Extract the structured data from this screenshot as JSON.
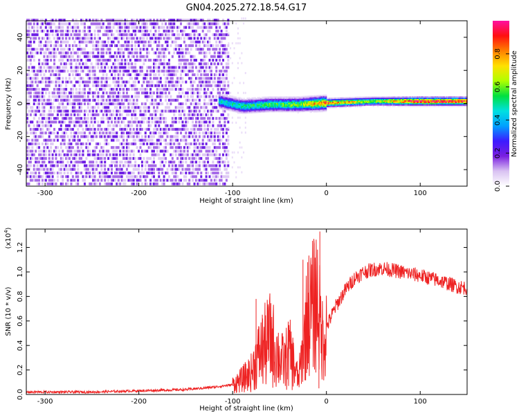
{
  "title": "GN04.2025.272.18.54.G17",
  "chart_data": [
    {
      "type": "heatmap",
      "name": "spectrogram",
      "xlabel": "Height of straight line (km)",
      "ylabel": "Frequency (Hz)",
      "xlim": [
        -320,
        150
      ],
      "ylim": [
        -50,
        50
      ],
      "xticks": [
        -300,
        -200,
        -100,
        0,
        100
      ],
      "yticks": [
        -40,
        -20,
        0,
        20,
        40
      ],
      "colorbar": {
        "label": "Normalized spectral amplitude",
        "range": [
          0,
          1
        ],
        "ticks": [
          0.0,
          0.2,
          0.4,
          0.6,
          0.8
        ],
        "tick_labels": [
          "0.0",
          "0.2",
          "0.4",
          "0.6",
          "0.8"
        ],
        "colors": [
          "#ffffff",
          "#d9c2f2",
          "#7a1fe0",
          "#3c1bff",
          "#00a0ff",
          "#00e0e0",
          "#00e040",
          "#b0ff00",
          "#ffe000",
          "#ff8000",
          "#ff1010",
          "#ff10a0"
        ]
      },
      "description_of_content": {
        "noise_region": {
          "x_range": [
            -320,
            -105
          ],
          "freq_range": [
            -50,
            50
          ],
          "amplitude": 0.15
        },
        "signal_track": [
          {
            "x": -115,
            "f": 1,
            "amp": 0.45
          },
          {
            "x": -90,
            "f": -2,
            "amp": 0.5
          },
          {
            "x": -60,
            "f": -1,
            "amp": 0.55
          },
          {
            "x": -30,
            "f": -1,
            "amp": 0.6
          },
          {
            "x": 0,
            "f": 0,
            "amp": 0.85
          },
          {
            "x": 50,
            "f": 1,
            "amp": 0.6
          },
          {
            "x": 100,
            "f": 1,
            "amp": 0.95
          },
          {
            "x": 150,
            "f": 1,
            "amp": 0.9
          }
        ]
      }
    },
    {
      "type": "line",
      "name": "snr",
      "xlabel": "Height of straight line (km)",
      "ylabel": "SNR (10 * v/v)",
      "exponent_label": "(x10",
      "exponent_value": "4",
      "exponent_close": ")",
      "xlim": [
        -320,
        150
      ],
      "ylim": [
        0,
        1.35
      ],
      "xticks": [
        -300,
        -200,
        -100,
        0,
        100
      ],
      "yticks": [
        0.0,
        0.2,
        0.4,
        0.6,
        0.8,
        1.0,
        1.2
      ],
      "ytick_labels": [
        "0.0",
        "0.2",
        "0.4",
        "0.6",
        "0.8",
        "1.0",
        "1.2"
      ],
      "color": "#ee2222",
      "series": [
        {
          "name": "SNR",
          "x": [
            -320,
            -250,
            -200,
            -150,
            -120,
            -100,
            -90,
            -80,
            -75,
            -70,
            -65,
            -60,
            -55,
            -50,
            -45,
            -40,
            -35,
            -30,
            -25,
            -20,
            -15,
            -10,
            -5,
            0,
            10,
            20,
            30,
            40,
            50,
            60,
            80,
            100,
            120,
            140,
            150
          ],
          "y": [
            0.02,
            0.02,
            0.03,
            0.04,
            0.06,
            0.08,
            0.12,
            0.18,
            0.28,
            0.35,
            0.4,
            0.45,
            0.38,
            0.3,
            0.25,
            0.35,
            0.25,
            0.12,
            0.35,
            0.65,
            0.7,
            0.8,
            0.45,
            0.55,
            0.72,
            0.85,
            0.95,
            1.0,
            1.02,
            1.03,
            1.0,
            0.97,
            0.93,
            0.88,
            0.87
          ]
        }
      ],
      "spikes": [
        {
          "x": -75,
          "y": 0.78
        },
        {
          "x": -68,
          "y": 0.62
        },
        {
          "x": -62,
          "y": 0.72
        },
        {
          "x": -25,
          "y": 1.1
        },
        {
          "x": -20,
          "y": 1.08
        },
        {
          "x": -7,
          "y": 1.33
        },
        {
          "x": -8,
          "y": 0.05
        }
      ]
    }
  ]
}
